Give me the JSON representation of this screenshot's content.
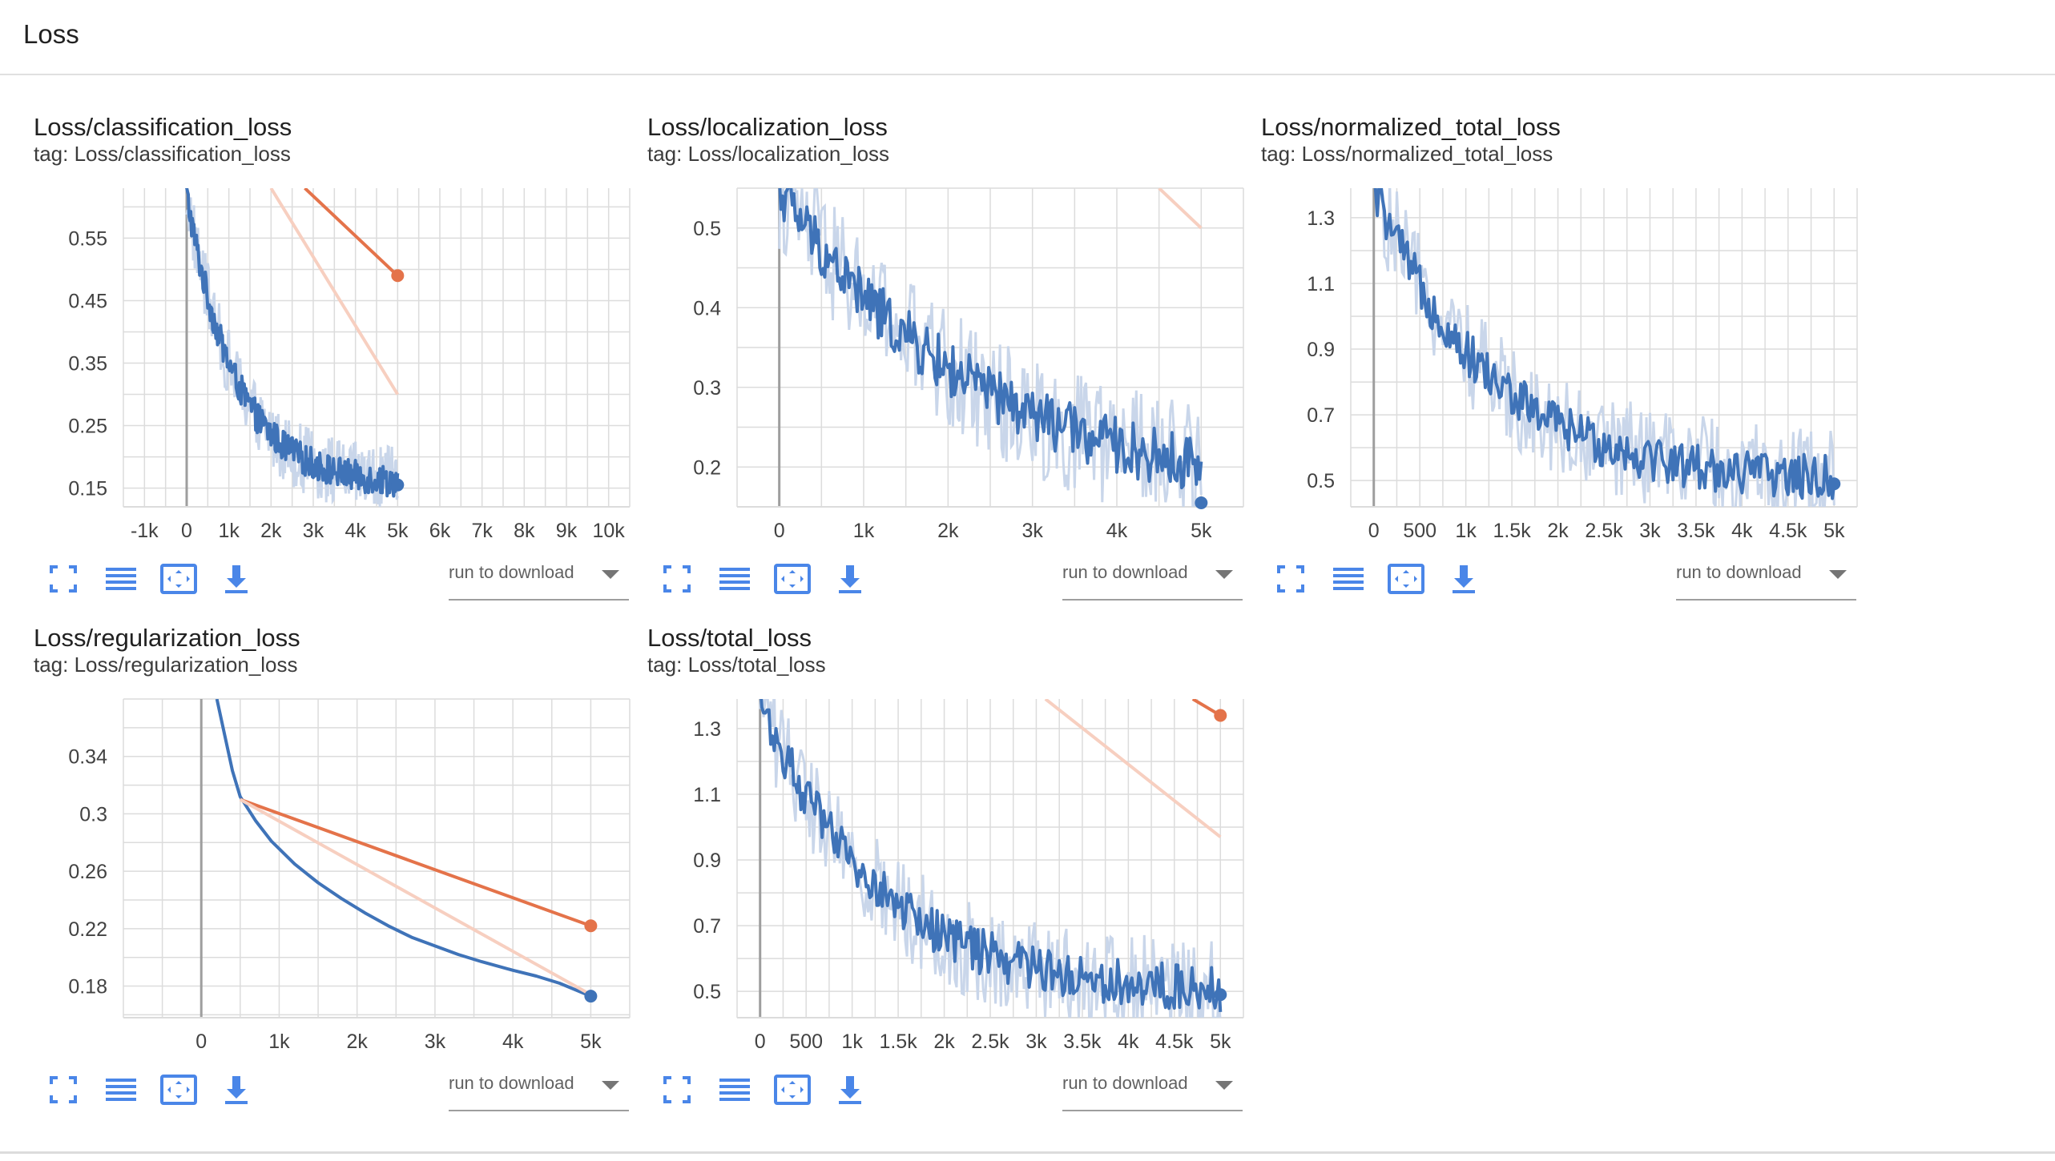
{
  "header": {
    "title": "Loss"
  },
  "toolbar": {
    "icons": [
      "fullscreen-icon",
      "lines-icon",
      "fit-domain-icon",
      "download-icon"
    ],
    "run_to_download_label": "run to download"
  },
  "colors": {
    "smoothed": "#3f73b8",
    "raw": "#c9d6ea",
    "orange": "#e4734a",
    "orange_faint": "#f7cfc0",
    "grid": "#dcdcdc",
    "axis": "#9e9e9e"
  },
  "charts": [
    {
      "title": "Loss/classification_loss",
      "tag": "tag: Loss/classification_loss",
      "chart_data": {
        "type": "line",
        "xlim": [
          -1500,
          10500
        ],
        "ylim": [
          0.12,
          0.63
        ],
        "x_ticks": [
          -1000,
          0,
          1000,
          2000,
          3000,
          4000,
          5000,
          6000,
          7000,
          8000,
          9000,
          10000
        ],
        "x_tick_labels": [
          "-1k",
          "0",
          "1k",
          "2k",
          "3k",
          "4k",
          "5k",
          "6k",
          "7k",
          "8k",
          "9k",
          "10k"
        ],
        "y_ticks": [
          0.15,
          0.25,
          0.35,
          0.45,
          0.55
        ],
        "y_tick_labels": [
          "0.15",
          "0.25",
          "0.35",
          "0.45",
          "0.55"
        ],
        "series": [
          {
            "style": "noisy",
            "color": "#3f73b8",
            "x_end": 5000,
            "y_start": 0.62,
            "decay": 0.23,
            "y_end": 0.155,
            "noise": 0.025
          },
          {
            "style": "line",
            "color": "#e4734a",
            "points": [
              [
                2800,
                0.63
              ],
              [
                5000,
                0.49
              ]
            ],
            "end_marker": true
          },
          {
            "style": "line",
            "color": "#f7cfc0",
            "points": [
              [
                2000,
                0.63
              ],
              [
                5000,
                0.3
              ]
            ]
          }
        ]
      }
    },
    {
      "title": "Loss/localization_loss",
      "tag": "tag: Loss/localization_loss",
      "chart_data": {
        "type": "line",
        "xlim": [
          -500,
          5500
        ],
        "ylim": [
          0.15,
          0.55
        ],
        "x_ticks": [
          0,
          1000,
          2000,
          3000,
          4000,
          5000
        ],
        "x_tick_labels": [
          "0",
          "1k",
          "2k",
          "3k",
          "4k",
          "5k"
        ],
        "y_ticks": [
          0.2,
          0.3,
          0.4,
          0.5
        ],
        "y_tick_labels": [
          "0.2",
          "0.3",
          "0.4",
          "0.5"
        ],
        "series": [
          {
            "style": "noisy",
            "color": "#3f73b8",
            "x_end": 5000,
            "y_start": 0.55,
            "decay": 0.47,
            "y_end": 0.155,
            "noise": 0.035
          },
          {
            "style": "line",
            "color": "#f7cfc0",
            "points": [
              [
                4500,
                0.55
              ],
              [
                5000,
                0.5
              ]
            ]
          }
        ]
      }
    },
    {
      "title": "Loss/normalized_total_loss",
      "tag": "tag: Loss/normalized_total_loss",
      "chart_data": {
        "type": "line",
        "xlim": [
          -250,
          5250
        ],
        "ylim": [
          0.42,
          1.39
        ],
        "x_ticks": [
          0,
          500,
          1000,
          1500,
          2000,
          2500,
          3000,
          3500,
          4000,
          4500,
          5000
        ],
        "x_tick_labels": [
          "0",
          "500",
          "1k",
          "1.5k",
          "2k",
          "2.5k",
          "3k",
          "3.5k",
          "4k",
          "4.5k",
          "5k"
        ],
        "y_ticks": [
          0.5,
          0.7,
          0.9,
          1.1,
          1.3
        ],
        "y_tick_labels": [
          "0.5",
          "0.7",
          "0.9",
          "1.1",
          "1.3"
        ],
        "series": [
          {
            "style": "noisy",
            "color": "#3f73b8",
            "x_end": 5000,
            "y_start": 1.39,
            "decay": 0.25,
            "y_end": 0.49,
            "noise": 0.07
          }
        ]
      }
    },
    {
      "title": "Loss/regularization_loss",
      "tag": "tag: Loss/regularization_loss",
      "chart_data": {
        "type": "line",
        "xlim": [
          -1000,
          5500
        ],
        "ylim": [
          0.158,
          0.38
        ],
        "x_ticks": [
          0,
          1000,
          2000,
          3000,
          4000,
          5000
        ],
        "x_tick_labels": [
          "0",
          "1k",
          "2k",
          "3k",
          "4k",
          "5k"
        ],
        "y_ticks": [
          0.18,
          0.22,
          0.26,
          0.3,
          0.34
        ],
        "y_tick_labels": [
          "0.18",
          "0.22",
          "0.26",
          "0.3",
          "0.34"
        ],
        "series": [
          {
            "style": "smooth",
            "color": "#3f73b8",
            "points": [
              [
                200,
                0.38
              ],
              [
                300,
                0.355
              ],
              [
                400,
                0.33
              ],
              [
                500,
                0.312
              ],
              [
                700,
                0.295
              ],
              [
                900,
                0.281
              ],
              [
                1200,
                0.265
              ],
              [
                1500,
                0.252
              ],
              [
                1800,
                0.241
              ],
              [
                2100,
                0.231
              ],
              [
                2400,
                0.222
              ],
              [
                2700,
                0.214
              ],
              [
                3000,
                0.208
              ],
              [
                3300,
                0.202
              ],
              [
                3600,
                0.197
              ],
              [
                4000,
                0.191
              ],
              [
                4300,
                0.187
              ],
              [
                4600,
                0.182
              ],
              [
                5000,
                0.173
              ]
            ],
            "end_marker": true
          },
          {
            "style": "line",
            "color": "#e4734a",
            "points": [
              [
                500,
                0.31
              ],
              [
                5000,
                0.222
              ]
            ],
            "end_marker": true
          },
          {
            "style": "line",
            "color": "#f7cfc0",
            "points": [
              [
                500,
                0.31
              ],
              [
                5000,
                0.174
              ]
            ]
          }
        ]
      }
    },
    {
      "title": "Loss/total_loss",
      "tag": "tag: Loss/total_loss",
      "chart_data": {
        "type": "line",
        "xlim": [
          -250,
          5250
        ],
        "ylim": [
          0.42,
          1.39
        ],
        "x_ticks": [
          0,
          500,
          1000,
          1500,
          2000,
          2500,
          3000,
          3500,
          4000,
          4500,
          5000
        ],
        "x_tick_labels": [
          "0",
          "500",
          "1k",
          "1.5k",
          "2k",
          "2.5k",
          "3k",
          "3.5k",
          "4k",
          "4.5k",
          "5k"
        ],
        "y_ticks": [
          0.5,
          0.7,
          0.9,
          1.1,
          1.3
        ],
        "y_tick_labels": [
          "0.5",
          "0.7",
          "0.9",
          "1.1",
          "1.3"
        ],
        "series": [
          {
            "style": "noisy",
            "color": "#3f73b8",
            "x_end": 5000,
            "y_start": 1.39,
            "decay": 0.25,
            "y_end": 0.49,
            "noise": 0.07
          },
          {
            "style": "line",
            "color": "#e4734a",
            "points": [
              [
                4700,
                1.39
              ],
              [
                5000,
                1.34
              ]
            ],
            "end_marker": true
          },
          {
            "style": "line",
            "color": "#f7cfc0",
            "points": [
              [
                3100,
                1.39
              ],
              [
                5000,
                0.97
              ]
            ]
          }
        ]
      }
    }
  ]
}
